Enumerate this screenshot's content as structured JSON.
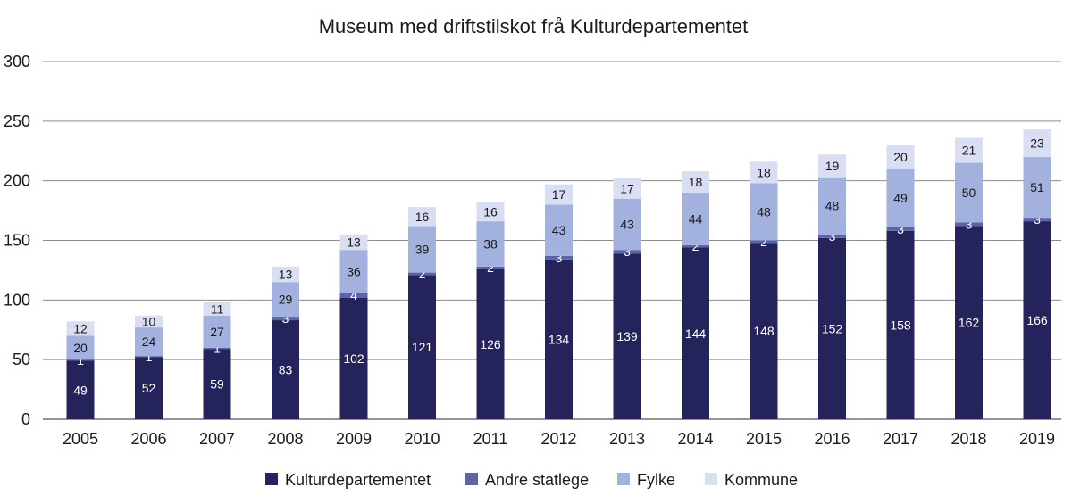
{
  "chart_data": {
    "type": "bar",
    "stacked": true,
    "title": "Museum med driftstilskot frå Kulturdepartementet",
    "xlabel": "",
    "ylabel": "",
    "ylim": [
      0,
      300
    ],
    "yticks": [
      "0",
      "50",
      "100",
      "150",
      "200",
      "250",
      "300"
    ],
    "grid": true,
    "legend_position": "bottom",
    "categories": [
      "2005",
      "2006",
      "2007",
      "2008",
      "2009",
      "2010",
      "2011",
      "2012",
      "2013",
      "2014",
      "2015",
      "2016",
      "2017",
      "2018",
      "2019"
    ],
    "series": [
      {
        "name": "Kulturdepartementet",
        "color": "#24235b",
        "label_color": "#ffffff",
        "values": [
          49,
          52,
          59,
          83,
          102,
          121,
          126,
          134,
          139,
          144,
          148,
          152,
          158,
          162,
          166
        ]
      },
      {
        "name": "Andre statlege",
        "color": "#5b64a8",
        "label_color": "#ffffff",
        "values": [
          1,
          1,
          1,
          3,
          4,
          2,
          2,
          3,
          3,
          2,
          2,
          3,
          3,
          3,
          3
        ]
      },
      {
        "name": "Fylke",
        "color": "#a2b1dd",
        "label_color": "#1a1a1a",
        "values": [
          20,
          24,
          27,
          29,
          36,
          39,
          38,
          43,
          43,
          44,
          48,
          48,
          49,
          50,
          51
        ]
      },
      {
        "name": "Kommune",
        "color": "#d9def2",
        "label_color": "#1a1a1a",
        "values": [
          12,
          10,
          11,
          13,
          13,
          16,
          16,
          17,
          17,
          18,
          18,
          19,
          20,
          21,
          23
        ]
      }
    ]
  }
}
